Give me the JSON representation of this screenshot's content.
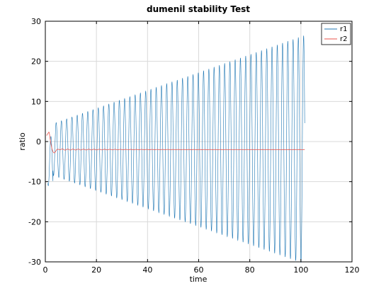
{
  "chart_data": {
    "type": "line",
    "title": "dumenil stability Test",
    "xlabel": "time",
    "ylabel": "ratio",
    "xlim": [
      0,
      120
    ],
    "ylim": [
      -30,
      30
    ],
    "xticks": [
      "0",
      "20",
      "40",
      "60",
      "80",
      "100",
      "120"
    ],
    "yticks": [
      "-30",
      "-20",
      "-10",
      "0",
      "10",
      "20",
      "30"
    ],
    "grid": true,
    "legend_position": "top-right",
    "series": [
      {
        "name": "r1",
        "color": "#1f77b4",
        "description_points": [
          {
            "t": 2,
            "y": -7
          },
          {
            "t": 20,
            "y": 13
          },
          {
            "t": 40,
            "y": -16
          },
          {
            "t": 60,
            "y": 20
          },
          {
            "t": 80,
            "y": -22
          },
          {
            "t": 100,
            "y": 28.5
          },
          {
            "t": 101,
            "y": -27
          }
        ],
        "period": 2.06,
        "envelope_start": 6,
        "envelope_end": 28.5,
        "t_start": 1,
        "t_end": 101.5
      },
      {
        "name": "r2",
        "color": "#e8534b",
        "points": [
          {
            "t": 0.5,
            "y": 1.5
          },
          {
            "t": 1.5,
            "y": 2.5
          },
          {
            "t": 2.5,
            "y": -0.5
          },
          {
            "t": 3.5,
            "y": -2.8
          },
          {
            "t": 4.5,
            "y": -1.5
          },
          {
            "t": 6,
            "y": -2.1
          },
          {
            "t": 10,
            "y": -1.9
          },
          {
            "t": 101.5,
            "y": -2
          }
        ]
      }
    ]
  }
}
